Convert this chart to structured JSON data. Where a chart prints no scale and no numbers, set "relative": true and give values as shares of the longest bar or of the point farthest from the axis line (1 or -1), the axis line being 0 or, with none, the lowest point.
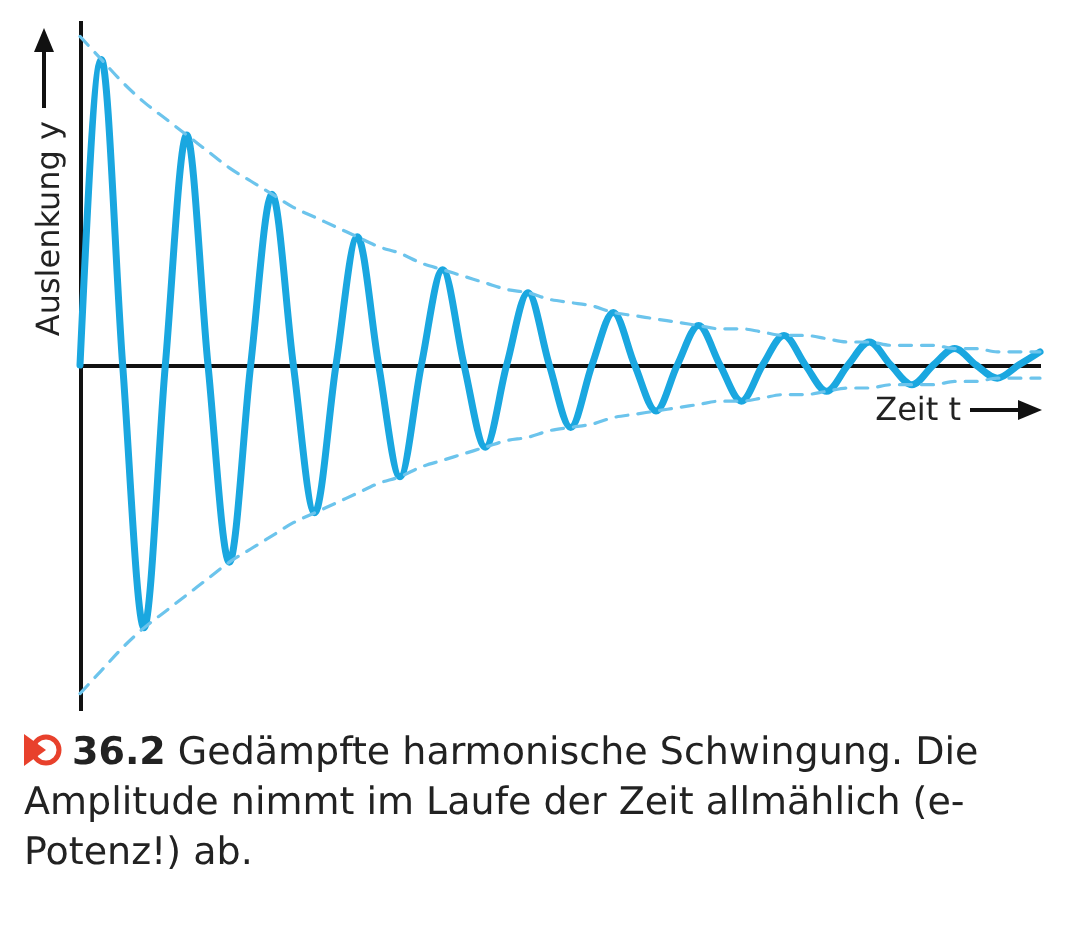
{
  "chart_data": {
    "type": "line",
    "relative": true,
    "xlabel": "Zeit t",
    "ylabel": "Auslenkung y",
    "tick_labels": false,
    "annotations": [
      "36.2 Gedämpfte harmonische Schwingung. Die Amplitude nimmt im Laufe der Zeit allmählich (e-Potenz!) ab."
    ],
    "categories": [
      null,
      null,
      null,
      null,
      null,
      null,
      null,
      null,
      null,
      null,
      null,
      null,
      null,
      null,
      null,
      null,
      null,
      null,
      null,
      null,
      null,
      null,
      null,
      null,
      null,
      null,
      null,
      null,
      null,
      null,
      null,
      null,
      null,
      null,
      null,
      null,
      null,
      null,
      null,
      null,
      null,
      null,
      null,
      null,
      null,
      null
    ],
    "series": [
      {
        "color": "#1aa7e0",
        "line_style": "solid",
        "values": [
          0,
          0.93,
          0,
          -0.8,
          0,
          0.7,
          0,
          -0.6,
          0,
          0.52,
          0,
          -0.45,
          0,
          0.39,
          0,
          -0.34,
          0,
          0.29,
          0,
          -0.25,
          0,
          0.22,
          0,
          -0.19,
          0,
          0.16,
          0,
          -0.14,
          0,
          0.12,
          0,
          -0.11,
          0,
          0.09,
          0,
          -0.08,
          0,
          0.07,
          0,
          -0.06,
          0,
          0.05,
          0,
          -0.04,
          0,
          0.04
        ]
      },
      {
        "color": "#6cc4ec",
        "line_style": "dashed",
        "values": [
          1,
          0.93,
          0.86,
          0.8,
          0.75,
          0.7,
          0.65,
          0.6,
          0.56,
          0.52,
          0.48,
          0.45,
          0.42,
          0.39,
          0.36,
          0.34,
          0.31,
          0.29,
          0.27,
          0.25,
          0.23,
          0.22,
          0.2,
          0.19,
          0.18,
          0.16,
          0.15,
          0.14,
          0.13,
          0.12,
          0.11,
          0.11,
          0.1,
          0.09,
          0.09,
          0.08,
          0.07,
          0.07,
          0.06,
          0.06,
          0.06,
          0.05,
          0.05,
          0.04,
          0.04,
          0.04
        ]
      },
      {
        "color": "#6cc4ec",
        "line_style": "dashed",
        "values": [
          -1,
          -0.93,
          -0.86,
          -0.8,
          -0.75,
          -0.7,
          -0.65,
          -0.6,
          -0.56,
          -0.52,
          -0.48,
          -0.45,
          -0.42,
          -0.39,
          -0.36,
          -0.34,
          -0.31,
          -0.29,
          -0.27,
          -0.25,
          -0.23,
          -0.22,
          -0.2,
          -0.19,
          -0.18,
          -0.16,
          -0.15,
          -0.14,
          -0.13,
          -0.12,
          -0.11,
          -0.11,
          -0.1,
          -0.09,
          -0.09,
          -0.08,
          -0.07,
          -0.07,
          -0.06,
          -0.06,
          -0.06,
          -0.05,
          -0.05,
          -0.04,
          -0.04,
          -0.04
        ]
      }
    ]
  }
}
